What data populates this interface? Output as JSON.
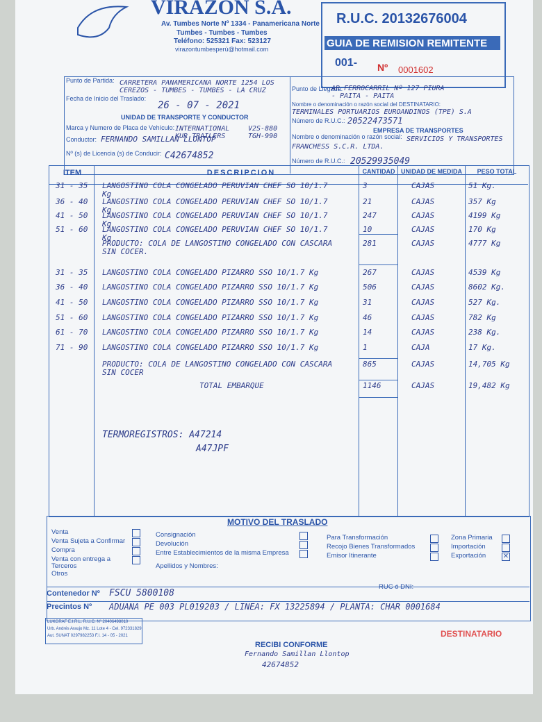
{
  "header": {
    "company": "VIRAZON S.A.",
    "address": "Av. Tumbes Norte Nº 1334 - Panamericana Norte",
    "city": "Tumbes - Tumbes - Tumbes",
    "phone": "Teléfono: 525321  Fax: 523127",
    "email": "virazontumbesperú@hotmail.com"
  },
  "ruc_box": {
    "ruc": "R.U.C. 20132676004",
    "doc_type": "GUIA DE REMISION REMITENTE",
    "series": "001-",
    "number_label": "Nº",
    "number": "0001602"
  },
  "shipping": {
    "departure_label": "Punto de Partida:",
    "departure": "CARRETERA PANAMERICANA NORTE 1254 LOS CEREZOS - TUMBES - TUMBES - LA CRUZ",
    "date_label": "Fecha de Inicio del Traslado:",
    "date": "26 - 07 - 2021",
    "arrival_label": "Punto de Llegada:",
    "arrival": "AR FERROCARRIL Nº 127 PIURA - PAITA - PAITA",
    "recipient_label": "Nombre o denominación o razón social del DESTINATARIO:",
    "recipient": "TERMINALES PORTUARIOS EUROANDINOS (TPE) S.A",
    "recipient_ruc_label": "Número de R.U.C.:",
    "recipient_ruc": "20522473571"
  },
  "transport": {
    "heading": "UNIDAD DE TRANSPORTE Y CONDUCTOR",
    "vehicle_label": "Marca y Numero de Placa de Vehículo:",
    "vehicle": "INTERNATIONAL KUR TRAILERS",
    "plates": "V2S-880 TGH-990",
    "driver_label": "Conductor:",
    "driver": "FERNANDO SAMILLAN LLONTOP",
    "license_label": "Nº (s) de Licencia (s) de Conducir:",
    "license": "C42674852"
  },
  "carrier": {
    "heading": "EMPRESA DE TRANSPORTES",
    "name_label": "Nombre o denominación o razón social:",
    "name": "SERVICIOS Y TRANSPORTES FRANCHESS S.C.R. LTDA.",
    "ruc_label": "Número de R.U.C.:",
    "ruc": "20529935049"
  },
  "table": {
    "headers": [
      "ITEM",
      "DESCRIPCION",
      "CANTIDAD",
      "UNIDAD DE MEDIDA",
      "PESO TOTAL"
    ],
    "rows": [
      [
        "31 - 35",
        "LANGOSTINO COLA CONGELADO PERUVIAN CHEF SO 10/1.7 Kg",
        "3",
        "CAJAS",
        "51 Kg."
      ],
      [
        "36 - 40",
        "LANGOSTINO COLA CONGELADO PERUVIAN CHEF SO 10/1.7 Kg",
        "21",
        "CAJAS",
        "357 Kg"
      ],
      [
        "41 - 50",
        "LANGOSTINO COLA CONGELADO PERUVIAN CHEF SO 10/1.7 Kg",
        "247",
        "CAJAS",
        "4199 Kg"
      ],
      [
        "51 - 60",
        "LANGOSTINO COLA CONGELADO PERUVIAN CHEF SO 10/1.7 Kg",
        "10",
        "CAJAS",
        "170 Kg"
      ],
      [
        null,
        "PRODUCTO: COLA DE LANGOSTINO CONGELADO CON CASCARA SIN COCER.",
        "281",
        "CAJAS",
        "4777 Kg"
      ],
      [
        "31 - 35",
        "LANGOSTINO COLA CONGELADO PIZARRO SSO 10/1.7 Kg",
        "267",
        "CAJAS",
        "4539 Kg"
      ],
      [
        "36 - 40",
        "LANGOSTINO COLA CONGELADO PIZARRO SSO 10/1.7 Kg",
        "506",
        "CAJAS",
        "8602 Kg."
      ],
      [
        "41 - 50",
        "LANGOSTINO COLA CONGELADO PIZARRO SSO 10/1.7 Kg",
        "31",
        "CAJAS",
        "527 Kg."
      ],
      [
        "51 - 60",
        "LANGOSTINO COLA CONGELADO PIZARRO SSO 10/1.7 Kg",
        "46",
        "CAJAS",
        "782 Kg"
      ],
      [
        "61 - 70",
        "LANGOSTINO COLA CONGELADO PIZARRO SSO 10/1.7 Kg",
        "14",
        "CAJAS",
        "238 Kg."
      ],
      [
        "71 - 90",
        "LANGOSTINO COLA CONGELADO PIZARRO SSO 10/1.7 Kg",
        "1",
        "CAJA",
        "17 Kg."
      ],
      [
        null,
        "PRODUCTO: COLA DE LANGOSTINO CONGELADO CON CASCARA SIN COCER",
        "865",
        "CAJAS",
        "14,705 Kg"
      ],
      [
        null,
        "TOTAL EMBARQUE",
        "1146",
        "CAJAS",
        "19,482 Kg"
      ]
    ],
    "notes": [
      "TERMOREGISTROS: A47214",
      "A47JPF"
    ]
  },
  "motive": {
    "title": "MOTIVO DEL TRASLADO",
    "columns": [
      [
        {
          "label": "Venta",
          "checked": false
        },
        {
          "label": "Venta Sujeta a Confirmar",
          "checked": false
        },
        {
          "label": "Compra",
          "checked": false
        },
        {
          "label": "Venta con entrega a Terceros",
          "checked": false
        },
        {
          "label": "Otros",
          "checked": false
        }
      ],
      [
        {
          "label": "Consignación",
          "checked": false
        },
        {
          "label": "Devolución",
          "checked": false
        },
        {
          "label": "Entre Establecimientos de la misma Empresa",
          "checked": false
        }
      ],
      [
        {
          "label": "Para Transformación",
          "checked": false
        },
        {
          "label": "Recojo Bienes Transformados",
          "checked": false
        },
        {
          "label": "Emisor Itinerante",
          "checked": false
        }
      ],
      [
        {
          "label": "Zona Primaria",
          "checked": false
        },
        {
          "label": "Importación",
          "checked": false
        },
        {
          "label": "Exportación",
          "checked": true
        }
      ]
    ],
    "names_label": "Apellidos y Nombres:",
    "id_label": "RUC ó DNI:"
  },
  "container": {
    "label": "Contenedor Nº",
    "value": "FSCU 5800108"
  },
  "seals": {
    "label": "Precintos Nº",
    "value": "ADUANA PE 003 PL019203 / LINEA: FX 13225894 / PLANTA: CHAR 0001684"
  },
  "printer": [
    "LUKGRAF E.I.R.L. R.U.C. Nº 20406498010",
    "Urb. Andrés Araujo Mz. 11 Lote 4 - Cel. 972331829",
    "Aut. SUNAT 0297982253  F.I. 14 - 05 - 2021"
  ],
  "signature": {
    "caption": "RECIBI CONFORME",
    "name": "Fernando Samillan Llontop",
    "id": "42674852"
  },
  "copy": "DESTINATARIO"
}
